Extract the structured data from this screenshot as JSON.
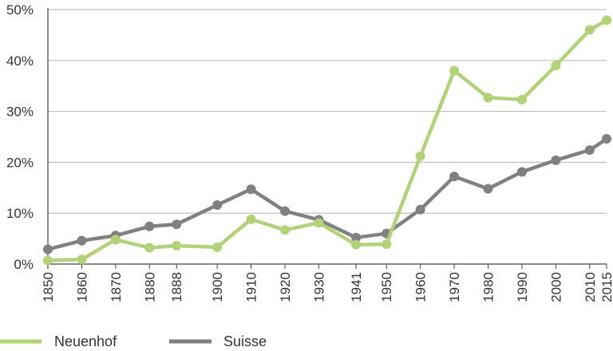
{
  "chart_data": {
    "type": "line",
    "x": [
      1850,
      1860,
      1870,
      1880,
      1888,
      1900,
      1910,
      1920,
      1930,
      1941,
      1950,
      1960,
      1970,
      1980,
      1990,
      2000,
      2010,
      2015
    ],
    "x_tick_labels": [
      "1850",
      "1860",
      "1870",
      "1880",
      "1888",
      "1900",
      "1910",
      "1920",
      "1930",
      "1941",
      "1950",
      "1960",
      "1970",
      "1980",
      "1990",
      "2000",
      "2010",
      "2015"
    ],
    "y_tick_labels": [
      "0%",
      "10%",
      "20%",
      "30%",
      "40%",
      "50%"
    ],
    "y_ticks": [
      0,
      10,
      20,
      30,
      40,
      50
    ],
    "ylim": [
      0,
      50
    ],
    "xlim": [
      1850,
      2015
    ],
    "grid": "horizontal",
    "legend_position": "bottom-left",
    "series": [
      {
        "name": "Neuenhof",
        "color": "#b2d27a",
        "values": [
          0.7,
          0.9,
          4.8,
          3.2,
          3.6,
          3.3,
          8.8,
          6.7,
          8.1,
          3.8,
          3.9,
          21.2,
          38.0,
          32.7,
          32.3,
          39.0,
          46.0,
          47.9
        ]
      },
      {
        "name": "Suisse",
        "color": "#808080",
        "values": [
          2.9,
          4.6,
          5.6,
          7.4,
          7.8,
          11.6,
          14.7,
          10.4,
          8.7,
          5.2,
          6.0,
          10.7,
          17.2,
          14.8,
          18.1,
          20.4,
          22.4,
          24.6
        ]
      }
    ]
  }
}
